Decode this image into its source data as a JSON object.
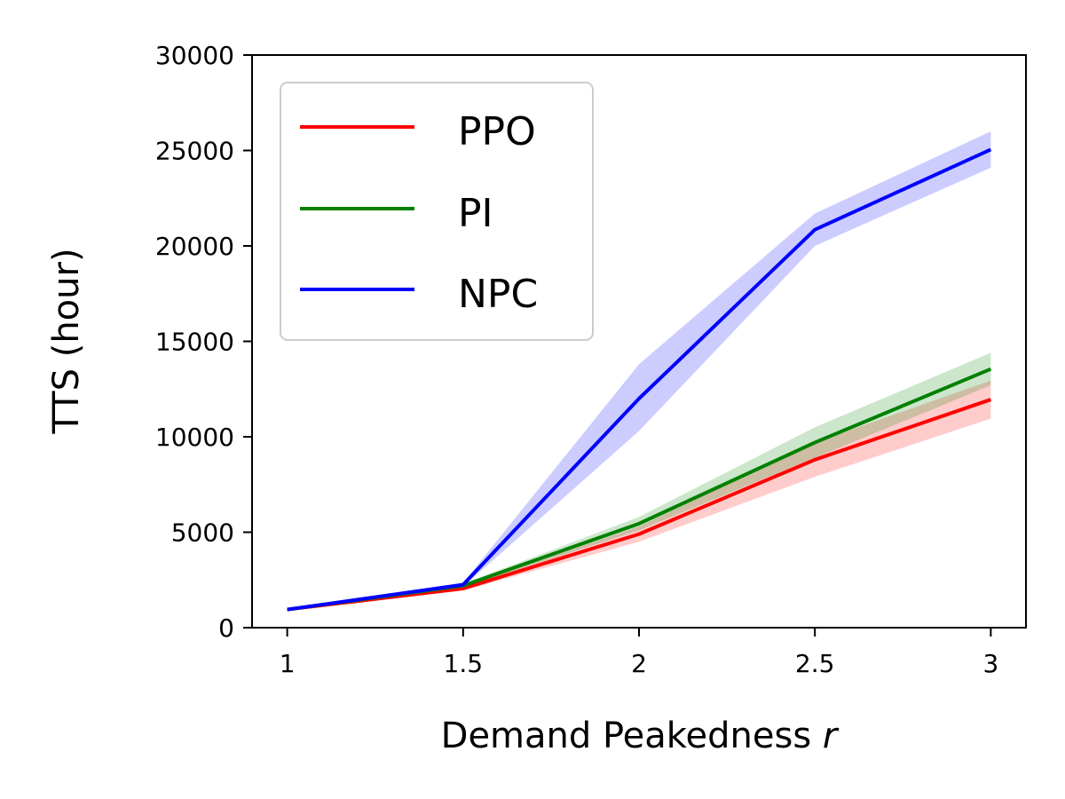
{
  "chart_data": {
    "type": "line",
    "title": "",
    "xlabel": "Demand Peakedness",
    "xlabel_var": "r",
    "ylabel": "TTS (hour)",
    "x": [
      1,
      1.5,
      2,
      2.5,
      3
    ],
    "x_tick_labels": [
      "1",
      "1.5",
      "2",
      "2.5",
      "3"
    ],
    "xlim": [
      0.9,
      3.1
    ],
    "ylim": [
      0,
      30000
    ],
    "y_ticks": [
      0,
      5000,
      10000,
      15000,
      20000,
      25000,
      30000
    ],
    "y_tick_labels": [
      "0",
      "5000",
      "10000",
      "15000",
      "20000",
      "25000",
      "30000"
    ],
    "grid": false,
    "legend_position": "top-left",
    "series": [
      {
        "name": "PPO",
        "color": "#ff0000",
        "band_color": "#ffcccc",
        "values": [
          950,
          2050,
          4900,
          8800,
          11950
        ],
        "lower": [
          900,
          1950,
          4500,
          7900,
          10950
        ],
        "upper": [
          1000,
          2150,
          5300,
          9700,
          12950
        ]
      },
      {
        "name": "PI",
        "color": "#008000",
        "band_color": "#cce5cc",
        "values": [
          950,
          2200,
          5450,
          9700,
          13550
        ],
        "lower": [
          900,
          2100,
          5100,
          8900,
          12700
        ],
        "upper": [
          1000,
          2300,
          5800,
          10500,
          14400
        ]
      },
      {
        "name": "NPC",
        "color": "#0000ff",
        "band_color": "#ccccff",
        "values": [
          950,
          2250,
          12000,
          20850,
          25050
        ],
        "lower": [
          900,
          2150,
          10300,
          20000,
          24100
        ],
        "upper": [
          1000,
          2350,
          13800,
          21700,
          26000
        ]
      }
    ]
  }
}
